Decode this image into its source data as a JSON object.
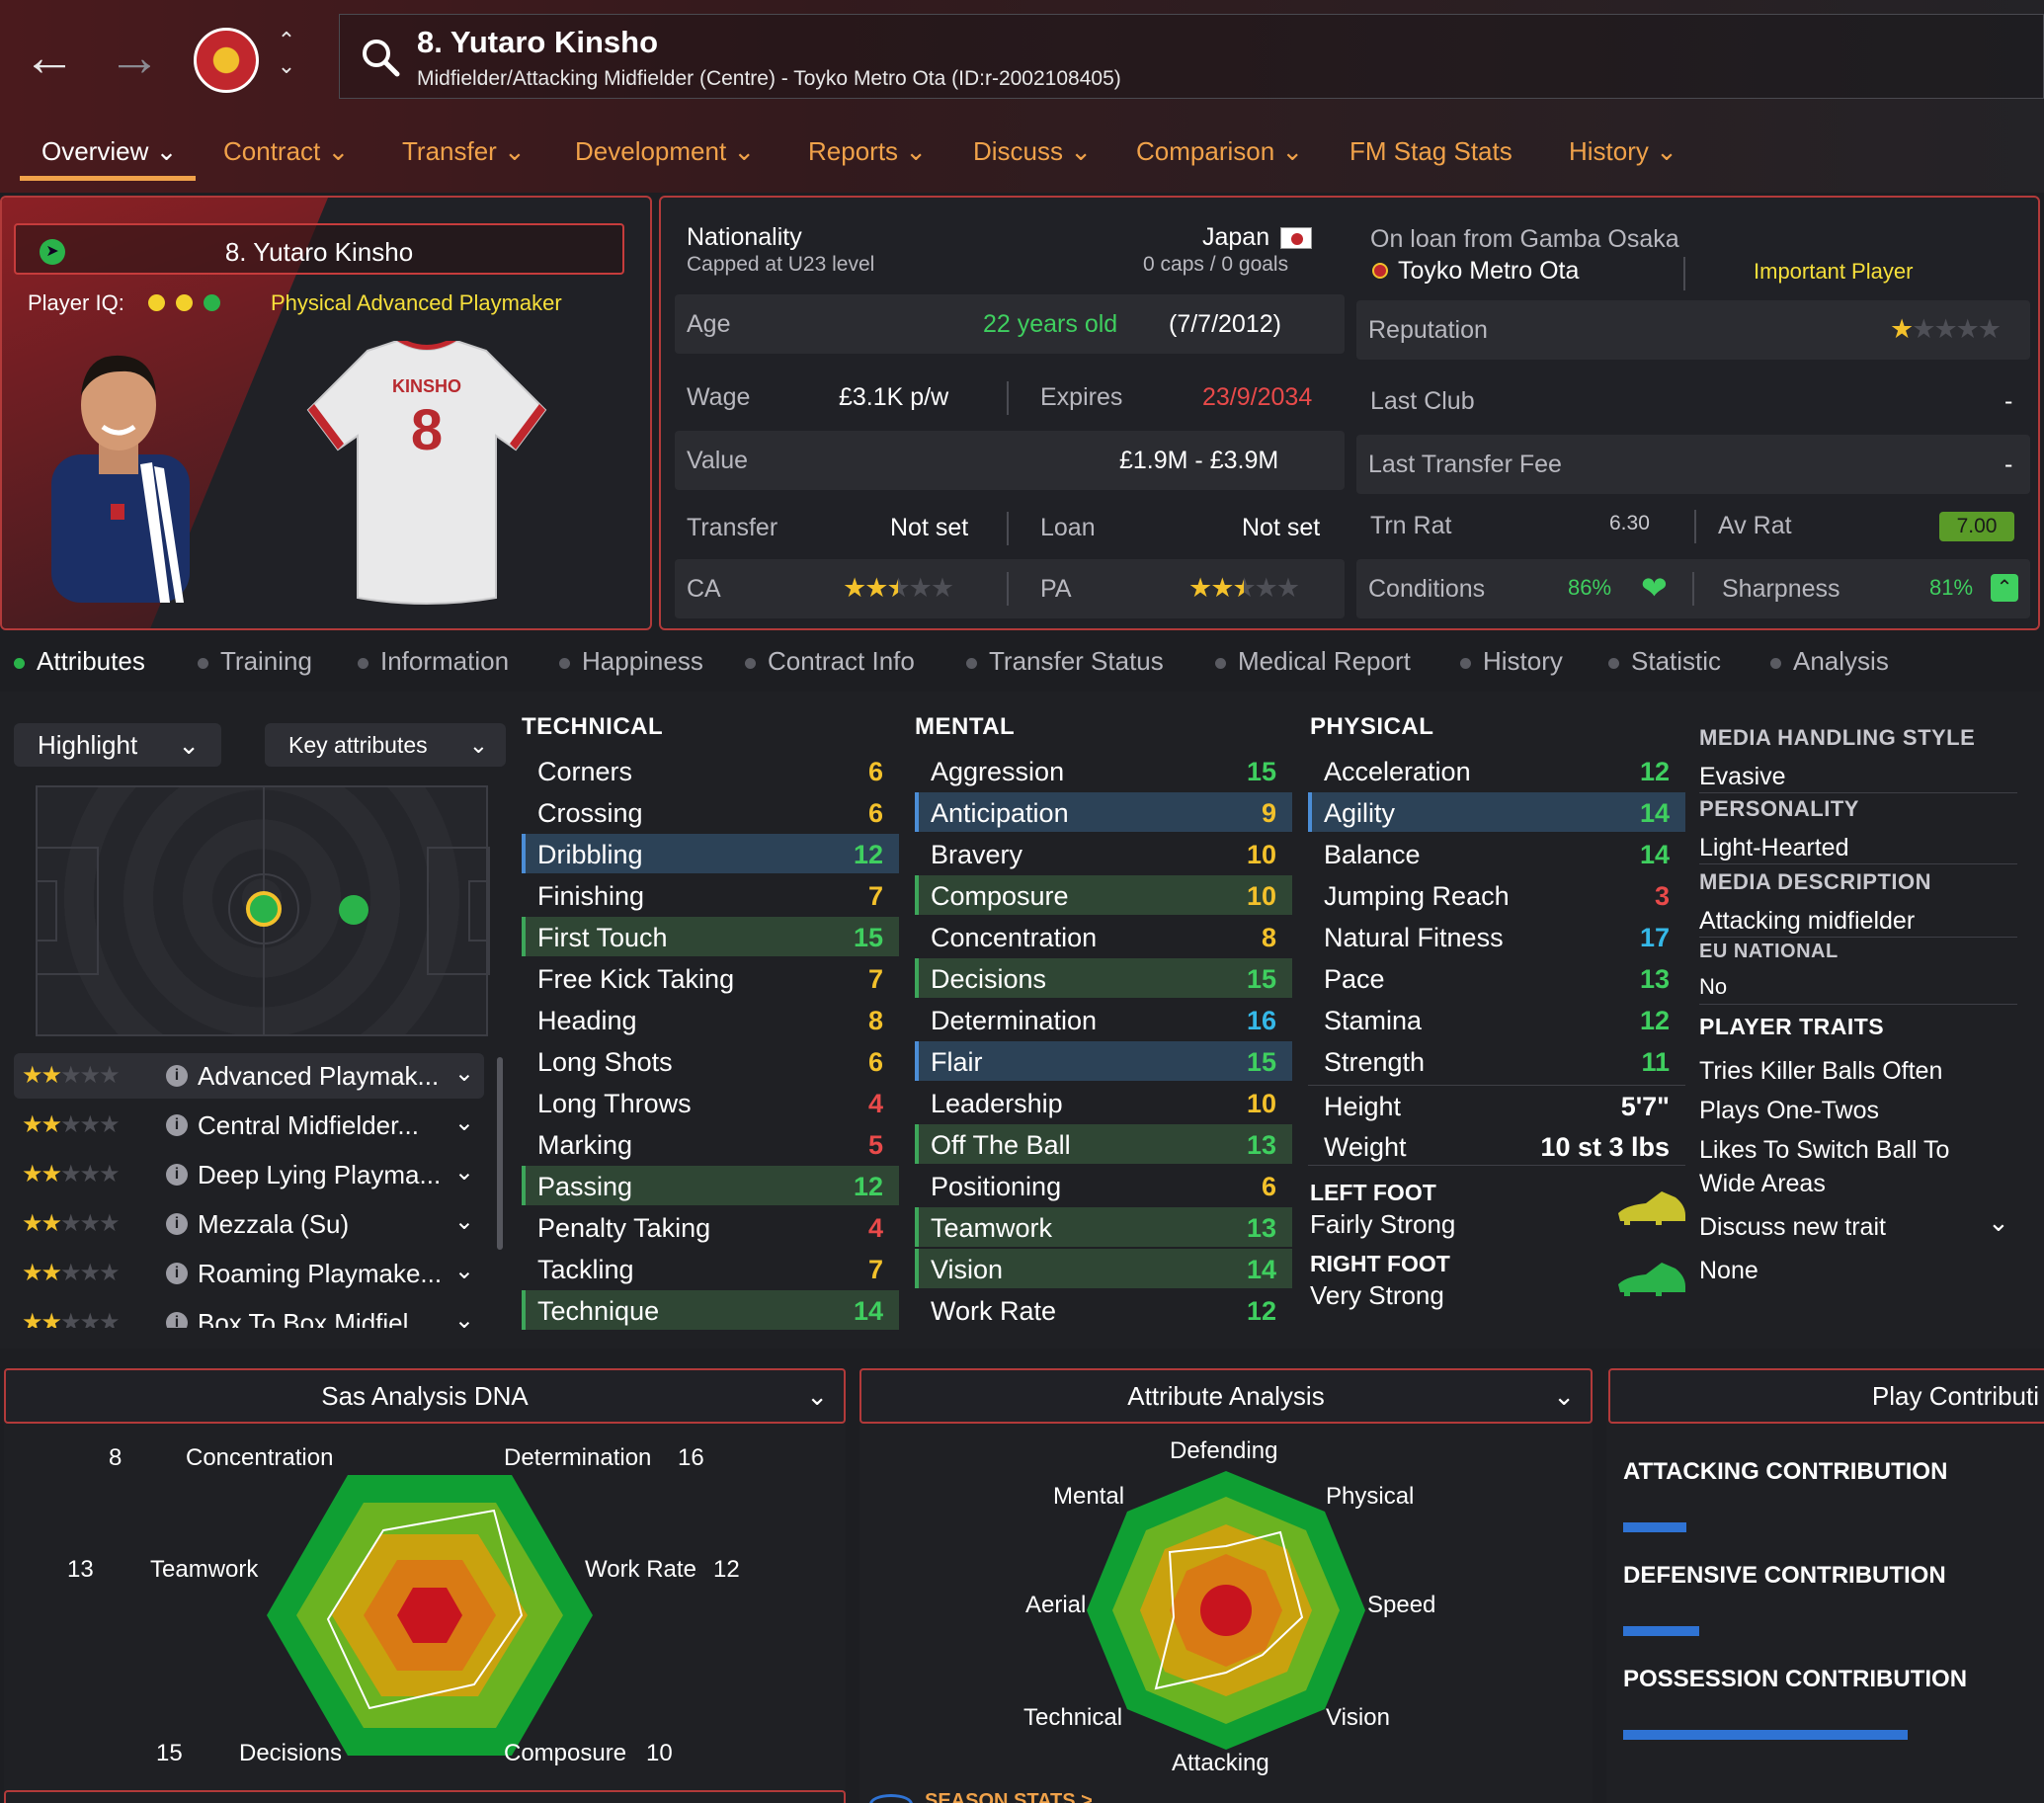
{
  "player": {
    "title": "8. Yutaro Kinsho",
    "subtitle": "Midfielder/Attacking Midfielder (Centre) - Toyko Metro Ota (ID:r-2002108405)",
    "card_name": "8. Yutaro Kinsho",
    "player_iq_label": "Player IQ:",
    "role": "Physical Advanced Playmaker",
    "shirt_name": "KINSHO",
    "shirt_number": "8"
  },
  "tabs": [
    {
      "label": "Overview ⌄"
    },
    {
      "label": "Contract ⌄"
    },
    {
      "label": "Transfer ⌄"
    },
    {
      "label": "Development ⌄"
    },
    {
      "label": "Reports ⌄"
    },
    {
      "label": "Discuss ⌄"
    },
    {
      "label": "Comparison ⌄"
    },
    {
      "label": "FM Stag Stats"
    },
    {
      "label": "History ⌄"
    }
  ],
  "info": {
    "nationality_label": "Nationality",
    "nationality": "Japan",
    "capped": "Capped at U23 level",
    "caps": "0 caps / 0 goals",
    "loan_from": "On loan from Gamba Osaka",
    "club": "Toyko Metro Ota",
    "status": "Important Player",
    "age_label": "Age",
    "age": "22 years old",
    "dob": "(7/7/2012)",
    "wage_label": "Wage",
    "wage": "£3.1K p/w",
    "expires_label": "Expires",
    "expires": "23/9/2034",
    "value_label": "Value",
    "value": "£1.9M - £3.9M",
    "transfer_label": "Transfer",
    "transfer": "Not set",
    "loan_label": "Loan",
    "loan": "Not set",
    "ca_label": "CA",
    "pa_label": "PA",
    "ca_stars": 2.5,
    "pa_stars": 2.5,
    "reputation_label": "Reputation",
    "reputation_stars": 1,
    "last_club_label": "Last Club",
    "last_club": "-",
    "last_fee_label": "Last Transfer Fee",
    "last_fee": "-",
    "trn_rat_label": "Trn Rat",
    "trn_rat": "6.30",
    "av_rat_label": "Av Rat",
    "av_rat": "7.00",
    "conditions_label": "Conditions",
    "conditions": "86%",
    "sharpness_label": "Sharpness",
    "sharpness": "81%"
  },
  "subtabs": [
    {
      "label": "Attributes"
    },
    {
      "label": "Training"
    },
    {
      "label": "Information"
    },
    {
      "label": "Happiness"
    },
    {
      "label": "Contract Info"
    },
    {
      "label": "Transfer Status"
    },
    {
      "label": "Medical Report"
    },
    {
      "label": "History"
    },
    {
      "label": "Statistic"
    },
    {
      "label": "Analysis"
    }
  ],
  "controls": {
    "highlight": "Highlight",
    "key_attributes": "Key attributes"
  },
  "roles": [
    {
      "name": "Advanced Playmak...",
      "stars": 2
    },
    {
      "name": "Central Midfielder...",
      "stars": 2
    },
    {
      "name": "Deep Lying Playma...",
      "stars": 2
    },
    {
      "name": "Mezzala (Su)",
      "stars": 2
    },
    {
      "name": "Roaming Playmake...",
      "stars": 2
    },
    {
      "name": "Box To Box Midfiel...",
      "stars": 2
    }
  ],
  "technical": {
    "header": "TECHNICAL",
    "items": [
      {
        "name": "Corners",
        "value": "6"
      },
      {
        "name": "Crossing",
        "value": "6"
      },
      {
        "name": "Dribbling",
        "value": "12"
      },
      {
        "name": "Finishing",
        "value": "7"
      },
      {
        "name": "First Touch",
        "value": "15"
      },
      {
        "name": "Free Kick Taking",
        "value": "7"
      },
      {
        "name": "Heading",
        "value": "8"
      },
      {
        "name": "Long Shots",
        "value": "6"
      },
      {
        "name": "Long Throws",
        "value": "4"
      },
      {
        "name": "Marking",
        "value": "5"
      },
      {
        "name": "Passing",
        "value": "12"
      },
      {
        "name": "Penalty Taking",
        "value": "4"
      },
      {
        "name": "Tackling",
        "value": "7"
      },
      {
        "name": "Technique",
        "value": "14"
      }
    ]
  },
  "mental": {
    "header": "MENTAL",
    "items": [
      {
        "name": "Aggression",
        "value": "15"
      },
      {
        "name": "Anticipation",
        "value": "9"
      },
      {
        "name": "Bravery",
        "value": "10"
      },
      {
        "name": "Composure",
        "value": "10"
      },
      {
        "name": "Concentration",
        "value": "8"
      },
      {
        "name": "Decisions",
        "value": "15"
      },
      {
        "name": "Determination",
        "value": "16"
      },
      {
        "name": "Flair",
        "value": "15"
      },
      {
        "name": "Leadership",
        "value": "10"
      },
      {
        "name": "Off The Ball",
        "value": "13"
      },
      {
        "name": "Positioning",
        "value": "6"
      },
      {
        "name": "Teamwork",
        "value": "13"
      },
      {
        "name": "Vision",
        "value": "14"
      },
      {
        "name": "Work Rate",
        "value": "12"
      }
    ]
  },
  "physical": {
    "header": "PHYSICAL",
    "items": [
      {
        "name": "Acceleration",
        "value": "12"
      },
      {
        "name": "Agility",
        "value": "14"
      },
      {
        "name": "Balance",
        "value": "14"
      },
      {
        "name": "Jumping Reach",
        "value": "3"
      },
      {
        "name": "Natural Fitness",
        "value": "17"
      },
      {
        "name": "Pace",
        "value": "13"
      },
      {
        "name": "Stamina",
        "value": "12"
      },
      {
        "name": "Strength",
        "value": "11"
      }
    ],
    "height_label": "Height",
    "height": "5'7\"",
    "weight_label": "Weight",
    "weight": "10 st 3 lbs",
    "left_foot_label": "LEFT FOOT",
    "left_foot": "Fairly Strong",
    "right_foot_label": "RIGHT FOOT",
    "right_foot": "Very Strong"
  },
  "side": {
    "media_style_label": "MEDIA HANDLING STYLE",
    "media_style": "Evasive",
    "personality_label": "PERSONALITY",
    "personality": "Light-Hearted",
    "media_desc_label": "MEDIA DESCRIPTION",
    "media_desc": "Attacking midfielder",
    "eu_label": "EU NATIONAL",
    "eu": "No",
    "traits_label": "PLAYER TRAITS",
    "traits": [
      "Tries Killer Balls Often",
      "Plays One-Twos",
      "Likes To Switch Ball To",
      "Wide Areas"
    ],
    "discuss": "Discuss new trait",
    "none": "None"
  },
  "dna": {
    "title": "Sas Analysis DNA",
    "labels": {
      "concentration": "Concentration",
      "concentration_v": "8",
      "determination": "Determination",
      "determination_v": "16",
      "teamwork": "Teamwork",
      "teamwork_v": "13",
      "workrate": "Work Rate",
      "workrate_v": "12",
      "decisions": "Decisions",
      "decisions_v": "15",
      "composure": "Composure",
      "composure_v": "10"
    }
  },
  "analysis": {
    "title": "Attribute Analysis",
    "labels": [
      "Defending",
      "Physical",
      "Speed",
      "Vision",
      "Attacking",
      "Technical",
      "Aerial",
      "Mental"
    ]
  },
  "contribution": {
    "title": "Play Contributi",
    "attacking": "ATTACKING CONTRIBUTION",
    "defensive": "DEFENSIVE CONTRIBUTION",
    "possession": "POSSESSION CONTRIBUTION",
    "attacking_level": 0.2,
    "defensive_level": 0.24,
    "possession_level": 0.9
  },
  "season_stats": "SEASON STATS >",
  "colors": {
    "accent": "#f0a24a",
    "green": "#2ab34a",
    "red": "#e84a4a",
    "yellow": "#f3c12b",
    "blue": "#2f73d4"
  }
}
